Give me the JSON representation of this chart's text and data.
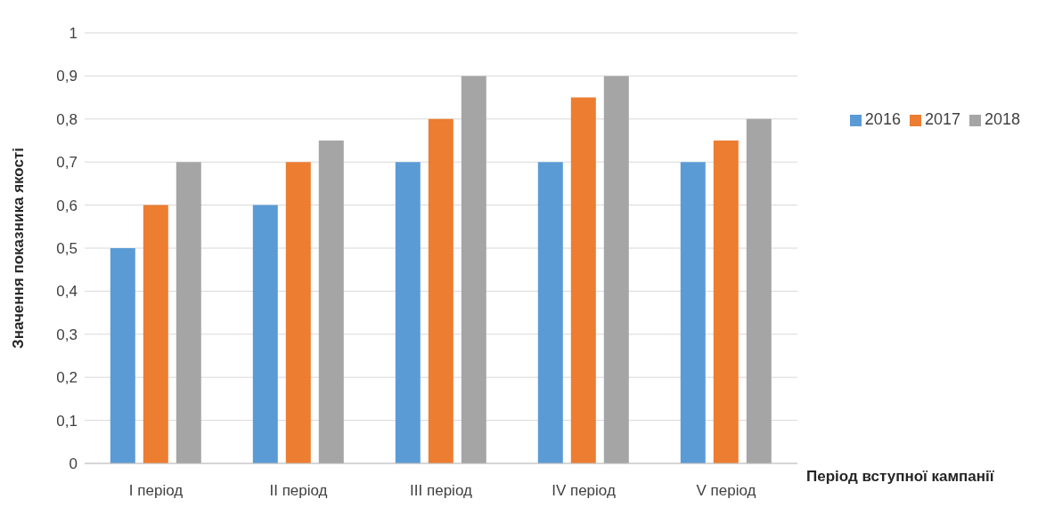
{
  "chart_data": {
    "type": "bar",
    "ylabel": "Значення показника якості",
    "xlabel": "Період вступної кампанії",
    "categories": [
      "I період",
      "II період",
      "III період",
      "IV період",
      "V період"
    ],
    "series": [
      {
        "name": "2016",
        "color": "#5b9bd5",
        "values": [
          0.5,
          0.6,
          0.7,
          0.7,
          0.7
        ]
      },
      {
        "name": "2017",
        "color": "#ed7d31",
        "values": [
          0.6,
          0.7,
          0.8,
          0.85,
          0.75
        ]
      },
      {
        "name": "2018",
        "color": "#a5a5a5",
        "values": [
          0.7,
          0.75,
          0.9,
          0.9,
          0.8
        ]
      }
    ],
    "ylim": [
      0,
      1
    ],
    "yticks": [
      0,
      {
        "value": 0.1,
        "label": "0,1"
      },
      {
        "value": 0.2,
        "label": "0,2"
      },
      {
        "value": 0.3,
        "label": "0,3"
      },
      {
        "value": 0.4,
        "label": "0,4"
      },
      {
        "value": 0.5,
        "label": "0,5"
      },
      {
        "value": 0.6,
        "label": "0,6"
      },
      {
        "value": 0.7,
        "label": "0,7"
      },
      {
        "value": 0.8,
        "label": "0,8"
      },
      {
        "value": 0.9,
        "label": "0,9"
      },
      1
    ],
    "grid": "y",
    "legend": "right"
  }
}
